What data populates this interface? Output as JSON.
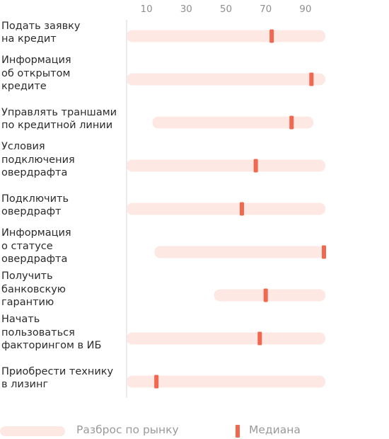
{
  "chart_data": {
    "type": "range",
    "title": "",
    "x_ticks": [
      10,
      30,
      50,
      70,
      90
    ],
    "categories": [
      "Подать заявку\nна кредит",
      "Информация\nоб открытом\nкредите",
      "Управлять траншами\nпо кредитной линии",
      "Условия\nподключения\nовердрафта",
      "Подключить\nовердрафт",
      "Информация\nо статусе\nовердрафта",
      "Получить\nбанковскую\nгарантию",
      "Начать\nпользоваться\nфакторингом в ИБ",
      "Приобрести технику\nв лизинг"
    ],
    "series": [
      {
        "name": "Разброс по рынку",
        "ranges": [
          [
            0,
            100
          ],
          [
            0,
            100
          ],
          [
            13,
            94
          ],
          [
            0,
            100
          ],
          [
            0,
            100
          ],
          [
            14,
            100
          ],
          [
            44,
            100
          ],
          [
            0,
            100
          ],
          [
            0,
            100
          ]
        ]
      },
      {
        "name": "Медиана",
        "values": [
          73,
          93,
          83,
          65,
          58,
          100,
          70,
          67,
          15
        ]
      }
    ],
    "colors": {
      "range": "#fde8e4",
      "median": "#f2674f",
      "grid": "#d9d9d9",
      "tick": "#8f8f8f",
      "label": "#2b2b2b"
    },
    "grid": true,
    "legend_position": "bottom"
  },
  "legend": {
    "range_label": "Разброс по рынку",
    "median_label": "Медиана"
  }
}
